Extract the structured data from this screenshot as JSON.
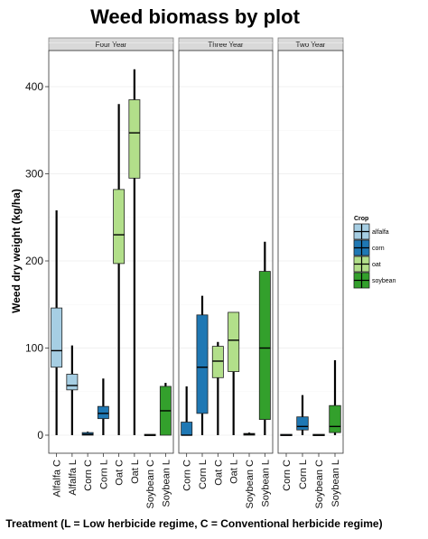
{
  "chart_data": {
    "type": "boxplot",
    "title": "Weed biomass by plot",
    "xlabel": "Treatment (L = Low herbicide regime, C = Conventional herbicide regime)",
    "ylabel": "Weed dry weight (kg/ha)",
    "ylim": [
      -20,
      450
    ],
    "yticks": [
      0,
      100,
      200,
      300,
      400
    ],
    "grid": true,
    "legend": {
      "title": "Crop",
      "position": "right",
      "entries": [
        {
          "name": "alfalfa",
          "color": "#a6cee3"
        },
        {
          "name": "corn",
          "color": "#1f78b4"
        },
        {
          "name": "oat",
          "color": "#b2df8a"
        },
        {
          "name": "soybean",
          "color": "#33a02c"
        }
      ]
    },
    "panels": [
      {
        "label": "Four Year",
        "boxes": [
          {
            "label": "Alfalfa C",
            "crop": "alfalfa",
            "min": 0,
            "q1": 78,
            "median": 97,
            "q3": 146,
            "max": 258
          },
          {
            "label": "Alfalfa L",
            "crop": "alfalfa",
            "min": 0,
            "q1": 52,
            "median": 57,
            "q3": 70,
            "max": 103
          },
          {
            "label": "Corn C",
            "crop": "corn",
            "min": 0,
            "q1": 0,
            "median": 1,
            "q3": 3,
            "max": 4
          },
          {
            "label": "Corn L",
            "crop": "corn",
            "min": 0,
            "q1": 19,
            "median": 25,
            "q3": 33,
            "max": 65
          },
          {
            "label": "Oat C",
            "crop": "oat",
            "min": 0,
            "q1": 197,
            "median": 230,
            "q3": 282,
            "max": 380
          },
          {
            "label": "Oat L",
            "crop": "oat",
            "min": 0,
            "q1": 295,
            "median": 347,
            "q3": 385,
            "max": 420
          },
          {
            "label": "Soybean C",
            "crop": "soybean",
            "min": 0,
            "q1": 0,
            "median": 0,
            "q3": 1,
            "max": 1
          },
          {
            "label": "Soybean L",
            "crop": "soybean",
            "min": 0,
            "q1": 0,
            "median": 28,
            "q3": 56,
            "max": 60
          }
        ]
      },
      {
        "label": "Three Year",
        "boxes": [
          {
            "label": "Corn C",
            "crop": "corn",
            "min": 0,
            "q1": 0,
            "median": 0,
            "q3": 15,
            "max": 56
          },
          {
            "label": "Corn L",
            "crop": "corn",
            "min": 0,
            "q1": 25,
            "median": 78,
            "q3": 138,
            "max": 160
          },
          {
            "label": "Oat C",
            "crop": "oat",
            "min": 0,
            "q1": 66,
            "median": 85,
            "q3": 102,
            "max": 107
          },
          {
            "label": "Oat L",
            "crop": "oat",
            "min": 0,
            "q1": 73,
            "median": 109,
            "q3": 141,
            "max": 141
          },
          {
            "label": "Soybean C",
            "crop": "soybean",
            "min": 0,
            "q1": 0,
            "median": 1,
            "q3": 2,
            "max": 3
          },
          {
            "label": "Soybean L",
            "crop": "soybean",
            "min": 0,
            "q1": 18,
            "median": 100,
            "q3": 188,
            "max": 222
          }
        ]
      },
      {
        "label": "Two Year",
        "boxes": [
          {
            "label": "Corn C",
            "crop": "corn",
            "min": 0,
            "q1": 0,
            "median": 0,
            "q3": 1,
            "max": 1
          },
          {
            "label": "Corn L",
            "crop": "corn",
            "min": 0,
            "q1": 6,
            "median": 10,
            "q3": 21,
            "max": 46
          },
          {
            "label": "Soybean C",
            "crop": "soybean",
            "min": 0,
            "q1": 0,
            "median": 0,
            "q3": 1,
            "max": 1
          },
          {
            "label": "Soybean L",
            "crop": "soybean",
            "min": 0,
            "q1": 3,
            "median": 10,
            "q3": 34,
            "max": 86
          }
        ]
      }
    ]
  }
}
